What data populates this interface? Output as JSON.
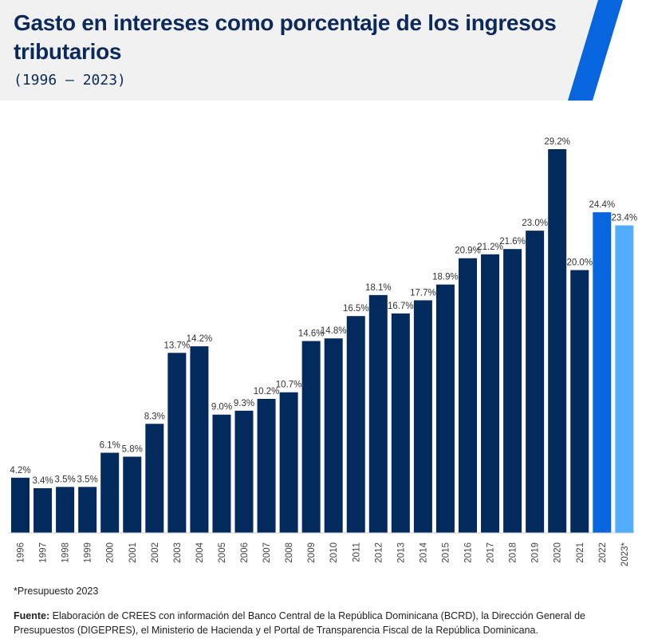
{
  "header": {
    "title": "Gasto en intereses como porcentaje de los ingresos tributarios",
    "subtitle": "(1996 – 2023)"
  },
  "colors": {
    "header_bg": "#f1f1f1",
    "accent_stripe": "#0766de",
    "bar_default": "#032a5c",
    "bar_2022": "#0766de",
    "bar_2023": "#52aefc",
    "title": "#0b2a5b"
  },
  "chart_data": {
    "type": "bar",
    "title": "Gasto en intereses como porcentaje de los ingresos tributarios",
    "subtitle": "(1996 – 2023)",
    "xlabel": "",
    "ylabel": "",
    "ylim": [
      0,
      29.2
    ],
    "grid": false,
    "legend": "none",
    "categories": [
      "1996",
      "1997",
      "1998",
      "1999",
      "2000",
      "2001",
      "2002",
      "2003",
      "2004",
      "2005",
      "2006",
      "2007",
      "2008",
      "2009",
      "2010",
      "2011",
      "2012",
      "2013",
      "2014",
      "2015",
      "2016",
      "2017",
      "2018",
      "2019",
      "2020",
      "2021",
      "2022",
      "2023*"
    ],
    "values": [
      4.2,
      3.4,
      3.5,
      3.5,
      6.1,
      5.8,
      8.3,
      13.7,
      14.2,
      9.0,
      9.3,
      10.2,
      10.7,
      14.6,
      14.8,
      16.5,
      18.1,
      16.7,
      17.7,
      18.9,
      20.9,
      21.2,
      21.6,
      23.0,
      29.2,
      20.0,
      24.4,
      23.4
    ],
    "labels": [
      "4.2%",
      "3.4%",
      "3.5%",
      "3.5%",
      "6.1%",
      "5.8%",
      "8.3%",
      "13.7%",
      "14.2%",
      "9.0%",
      "9.3%",
      "10.2%",
      "10.7%",
      "14.6%",
      "14.8%",
      "16.5%",
      "18.1%",
      "16.7%",
      "17.7%",
      "18.9%",
      "20.9%",
      "21.2%",
      "21.6%",
      "23.0%",
      "29.2%",
      "20.0%",
      "24.4%",
      "23.4%"
    ],
    "bar_colors": [
      "default",
      "default",
      "default",
      "default",
      "default",
      "default",
      "default",
      "default",
      "default",
      "default",
      "default",
      "default",
      "default",
      "default",
      "default",
      "default",
      "default",
      "default",
      "default",
      "default",
      "default",
      "default",
      "default",
      "default",
      "default",
      "default",
      "2022",
      "2023"
    ]
  },
  "footer": {
    "note": "*Presupuesto 2023",
    "source_label": "Fuente:",
    "source_text": " Elaboración de CREES con información del Banco Central de la República Dominicana (BCRD), la Dirección General de Presupuestos (DIGEPRES), el Ministerio de Hacienda y el Portal de Transparencia Fiscal de la República Dominicana."
  }
}
